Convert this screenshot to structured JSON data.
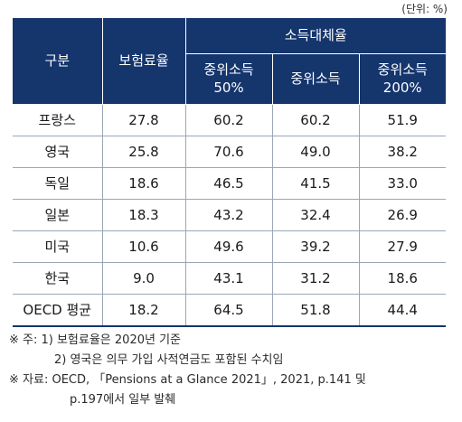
{
  "unit": "(단위: %)",
  "headers": {
    "category": "구분",
    "premium": "보험료율",
    "replacement": "소득대체율",
    "sub": [
      "중위소득\n50%",
      "중위소득",
      "중위소득\n200%"
    ]
  },
  "rows": [
    {
      "name": "프랑스",
      "values": [
        "27.8",
        "60.2",
        "60.2",
        "51.9"
      ]
    },
    {
      "name": "영국",
      "values": [
        "25.8",
        "70.6",
        "49.0",
        "38.2"
      ]
    },
    {
      "name": "독일",
      "values": [
        "18.6",
        "46.5",
        "41.5",
        "33.0"
      ]
    },
    {
      "name": "일본",
      "values": [
        "18.3",
        "43.2",
        "32.4",
        "26.9"
      ]
    },
    {
      "name": "미국",
      "values": [
        "10.6",
        "49.6",
        "39.2",
        "27.9"
      ]
    },
    {
      "name": "한국",
      "values": [
        "9.0",
        "43.1",
        "31.2",
        "18.6"
      ]
    },
    {
      "name": "OECD 평균",
      "values": [
        "18.2",
        "64.5",
        "51.8",
        "44.4"
      ]
    }
  ],
  "notes": {
    "note1": "※ 주:  1) 보험료율은 2020년 기준",
    "note2": "2) 영국은 의무 가입 사적연금도 포함된 수치임",
    "source1": "※ 자료:  OECD, 「Pensions at a Glance 2021」, 2021, p.141 및",
    "source2": "p.197에서 일부 발췌"
  }
}
